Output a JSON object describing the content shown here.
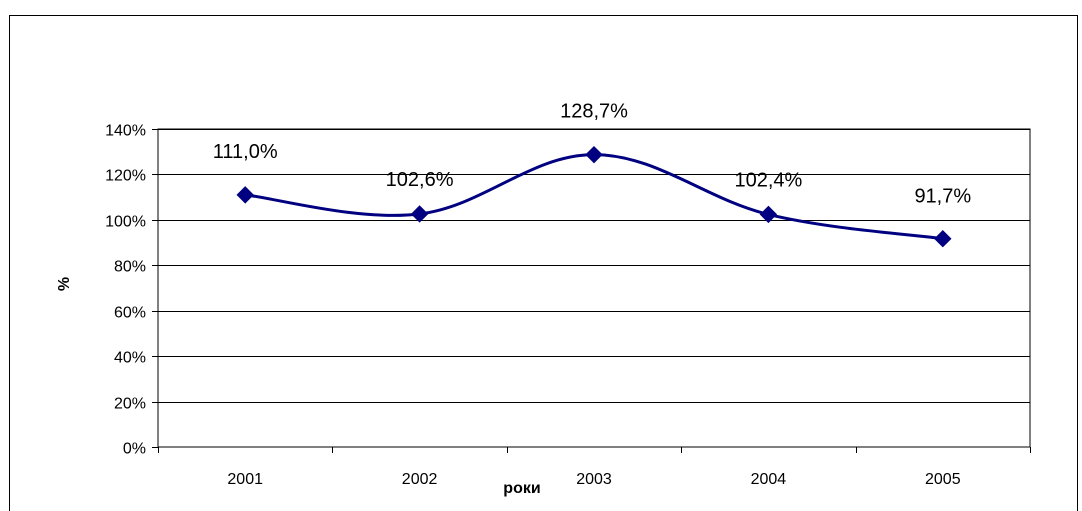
{
  "chart_data": {
    "type": "line",
    "title": "",
    "xlabel": "роки",
    "ylabel": "%",
    "categories": [
      "2001",
      "2002",
      "2003",
      "2004",
      "2005"
    ],
    "values": [
      111.0,
      102.6,
      128.7,
      102.4,
      91.7
    ],
    "data_labels": [
      "111,0%",
      "102,6%",
      "128,7%",
      "102,4%",
      "91,7%"
    ],
    "ylim": [
      0,
      140
    ],
    "yticks": [
      0,
      20,
      40,
      60,
      80,
      100,
      120,
      140
    ],
    "ytick_labels": [
      "0%",
      "20%",
      "40%",
      "60%",
      "80%",
      "100%",
      "120%",
      "140%"
    ],
    "grid": "horizontal",
    "smooth": true,
    "marker": "diamond",
    "legend": "none",
    "colors": {
      "line": "#000080",
      "marker": "#000080",
      "grid": "#000000",
      "border": "#000000"
    }
  }
}
